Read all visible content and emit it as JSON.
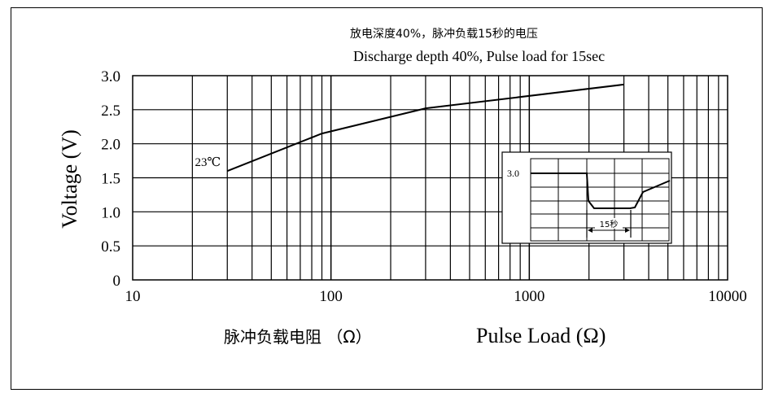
{
  "chart_data": {
    "type": "line",
    "title_cn": "放电深度40%，脉冲负载15秒的电压",
    "title_en": "Discharge depth 40%, Pulse load for 15sec",
    "ylabel": "Voltage (V)",
    "xlabel_cn": "脉冲负载电阻 （Ω）",
    "xlabel_en": "Pulse Load (Ω)",
    "x_scale": "log",
    "xlim": [
      10,
      10000
    ],
    "ylim": [
      0,
      3.0
    ],
    "x_ticks": [
      "10",
      "100",
      "1000",
      "10000"
    ],
    "y_ticks": [
      "3.0",
      "2.5",
      "2.0",
      "1.5",
      "1.0",
      "0.5",
      "0"
    ],
    "grid": true,
    "series": [
      {
        "name": "23℃",
        "x": [
          30,
          90,
          300,
          3000
        ],
        "y": [
          1.6,
          2.15,
          2.52,
          2.87
        ]
      }
    ],
    "inset": {
      "label_value": "3.0",
      "pulse_label": "15秒"
    }
  }
}
